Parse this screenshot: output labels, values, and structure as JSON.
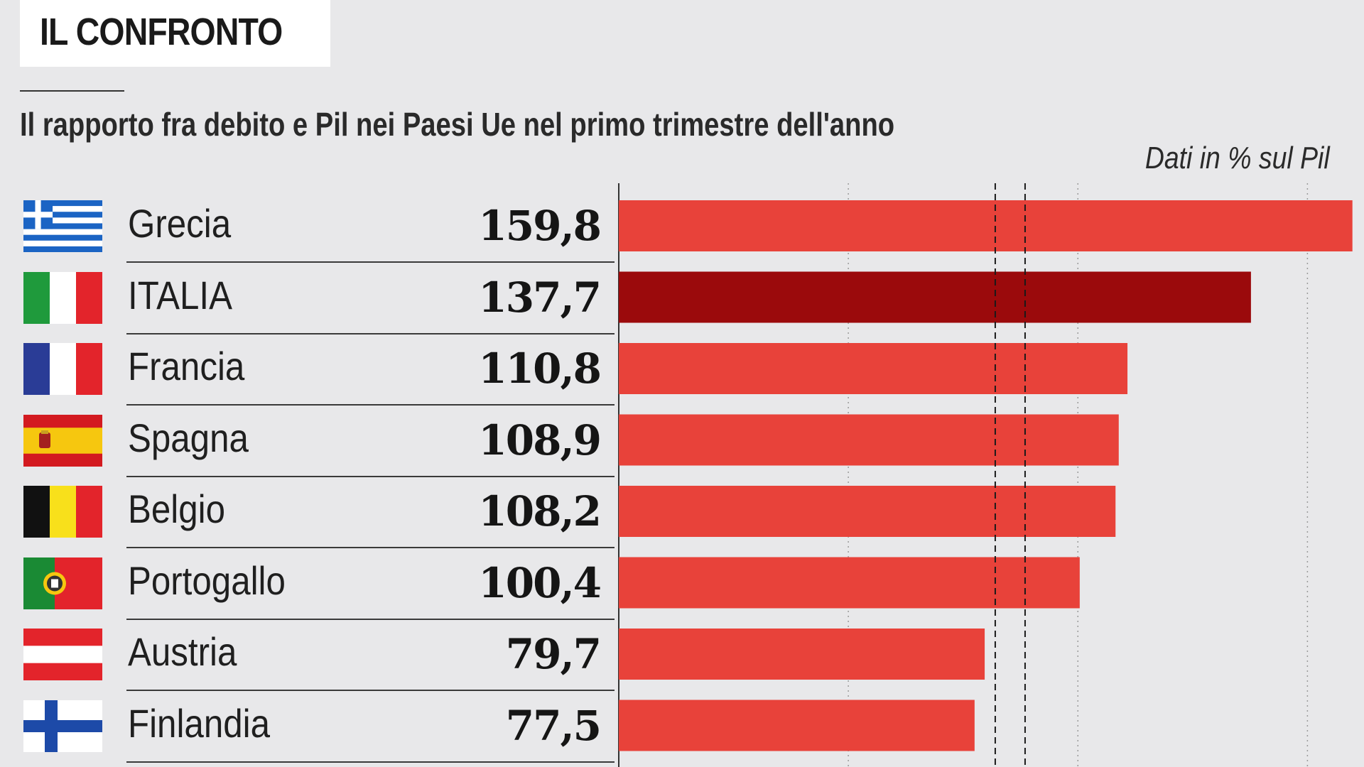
{
  "header": {
    "title": "IL CONFRONTO",
    "subtitle": "Il rapporto fra debito e Pil nei Paesi Ue nel primo trimestre dell'anno",
    "units": "Dati in % sul Pil"
  },
  "colors": {
    "bar": "#e8423a",
    "highlight_bar": "#9b0a0c",
    "background": "#e8e8ea"
  },
  "chart_data": {
    "type": "bar",
    "orientation": "horizontal",
    "categories": [
      "Grecia",
      "ITALIA",
      "Francia",
      "Spagna",
      "Belgio",
      "Portogallo",
      "Austria",
      "Finlandia"
    ],
    "values": [
      159.8,
      137.7,
      110.8,
      108.9,
      108.2,
      100.4,
      79.7,
      77.5
    ],
    "value_labels": [
      "159,8",
      "137,7",
      "110,8",
      "108,9",
      "108,2",
      "100,4",
      "79,7",
      "77,5"
    ],
    "highlight": "ITALIA",
    "flags": [
      "greece-flag-icon",
      "italy-flag-icon",
      "france-flag-icon",
      "spain-flag-icon",
      "belgium-flag-icon",
      "portugal-flag-icon",
      "austria-flag-icon",
      "finland-flag-icon"
    ],
    "xlim": [
      0,
      160
    ],
    "gridlines": [
      50,
      100,
      150
    ],
    "dashed_reference_lines": [
      82,
      88.5
    ],
    "grid": true,
    "title": "IL CONFRONTO",
    "subtitle": "Il rapporto fra debito e Pil nei Paesi Ue nel primo trimestre dell'anno",
    "units": "Dati in % sul Pil"
  }
}
